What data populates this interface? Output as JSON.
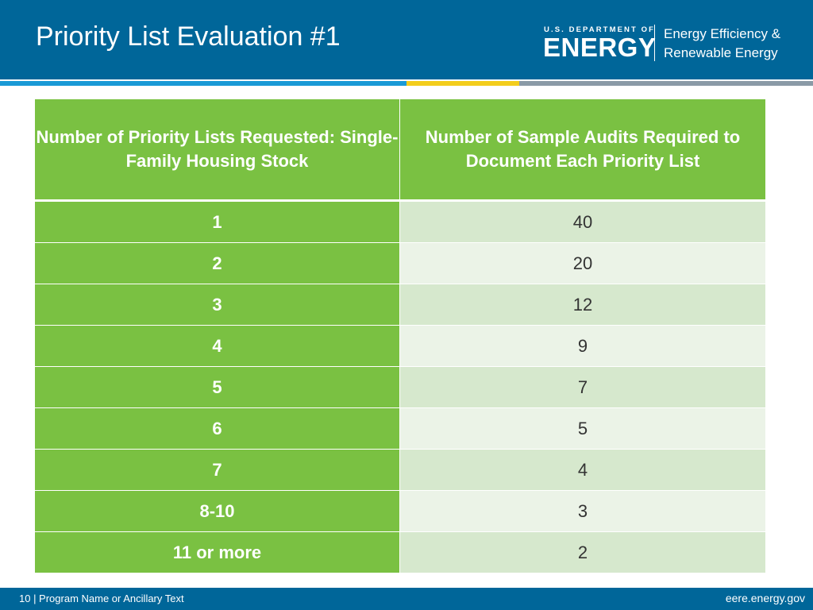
{
  "slide": {
    "title": "Priority List Evaluation #1"
  },
  "logo": {
    "department": "U.S. DEPARTMENT OF",
    "name": "ENERGY",
    "office_line1": "Energy Efficiency &",
    "office_line2": "Renewable Energy"
  },
  "table": {
    "headers": [
      "Number of Priority Lists Requested: Single-Family Housing Stock",
      "Number of Sample Audits Required to Document Each Priority List"
    ],
    "rows": [
      {
        "lists": "1",
        "audits": "40"
      },
      {
        "lists": "2",
        "audits": "20"
      },
      {
        "lists": "3",
        "audits": "12"
      },
      {
        "lists": "4",
        "audits": "9"
      },
      {
        "lists": "5",
        "audits": "7"
      },
      {
        "lists": "6",
        "audits": "5"
      },
      {
        "lists": "7",
        "audits": "4"
      },
      {
        "lists": "8-10",
        "audits": "3"
      },
      {
        "lists": "11 or more",
        "audits": "2"
      }
    ]
  },
  "footer": {
    "left": "10 | Program Name or Ancillary Text",
    "right": "eere.energy.gov"
  },
  "colors": {
    "header_blue": "#006699",
    "table_green": "#7ac142",
    "row_light_1": "#d6e8cd",
    "row_light_2": "#ebf3e7"
  }
}
